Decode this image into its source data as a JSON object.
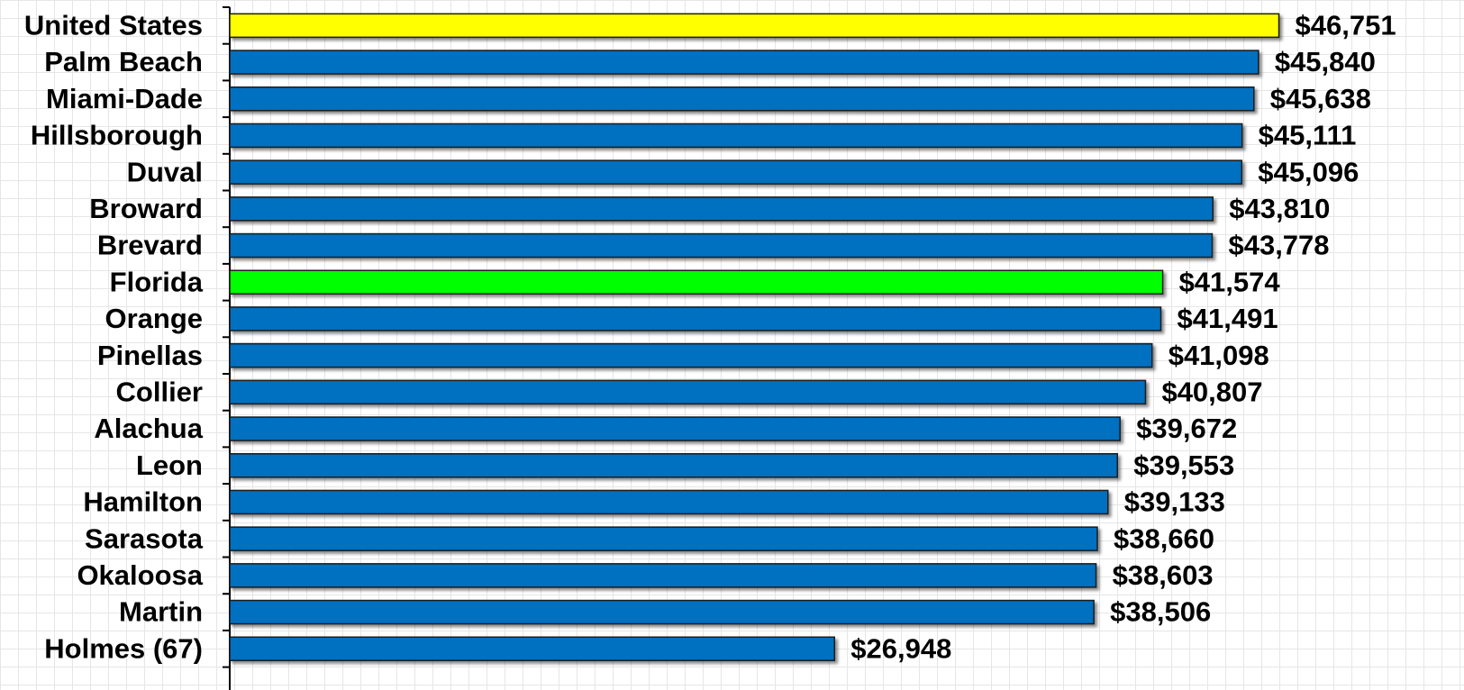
{
  "chart_data": {
    "type": "barh",
    "categories": [
      "United States",
      "Palm Beach",
      "Miami-Dade",
      "Hillsborough",
      "Duval",
      "Broward",
      "Brevard",
      "Florida",
      "Orange",
      "Pinellas",
      "Collier",
      "Alachua",
      "Leon",
      "Hamilton",
      "Sarasota",
      "Okaloosa",
      "Martin",
      "Holmes (67)"
    ],
    "values": [
      46751,
      45840,
      45638,
      45111,
      45096,
      43810,
      43778,
      41574,
      41491,
      41098,
      40807,
      39672,
      39553,
      39133,
      38660,
      38603,
      38506,
      26948
    ],
    "value_labels": [
      "$46,751",
      "$45,840",
      "$45,638",
      "$45,111",
      "$45,096",
      "$43,810",
      "$43,778",
      "$41,574",
      "$41,491",
      "$41,098",
      "$40,807",
      "$39,672",
      "$39,553",
      "$39,133",
      "$38,660",
      "$38,603",
      "$38,506",
      "$26,948"
    ],
    "colors": [
      "#ffff00",
      "#0070c0",
      "#0070c0",
      "#0070c0",
      "#0070c0",
      "#0070c0",
      "#0070c0",
      "#00ff00",
      "#0070c0",
      "#0070c0",
      "#0070c0",
      "#0070c0",
      "#0070c0",
      "#0070c0",
      "#0070c0",
      "#0070c0",
      "#0070c0",
      "#0070c0"
    ],
    "xlim": [
      0,
      55000
    ]
  }
}
